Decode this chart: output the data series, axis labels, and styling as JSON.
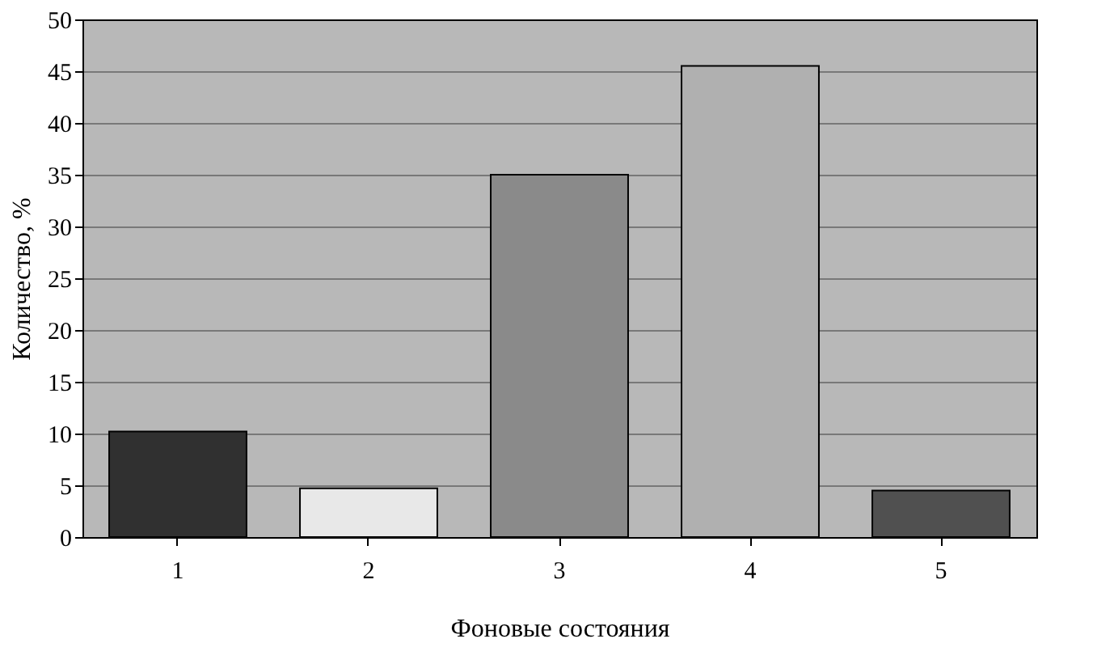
{
  "chart_data": {
    "type": "bar",
    "xlabel": "Фоновые состояния",
    "ylabel": "Количество, %",
    "categories": [
      "1",
      "2",
      "3",
      "4",
      "5"
    ],
    "values": [
      10.2,
      4.7,
      35,
      45.5,
      4.5
    ],
    "colors": [
      "#303030",
      "#e8e8e8",
      "#8a8a8a",
      "#b0b0b0",
      "#505050"
    ],
    "ylim": [
      0,
      50
    ],
    "yticks": [
      0,
      5,
      10,
      15,
      20,
      25,
      30,
      35,
      40,
      45,
      50
    ],
    "grid": "y"
  }
}
